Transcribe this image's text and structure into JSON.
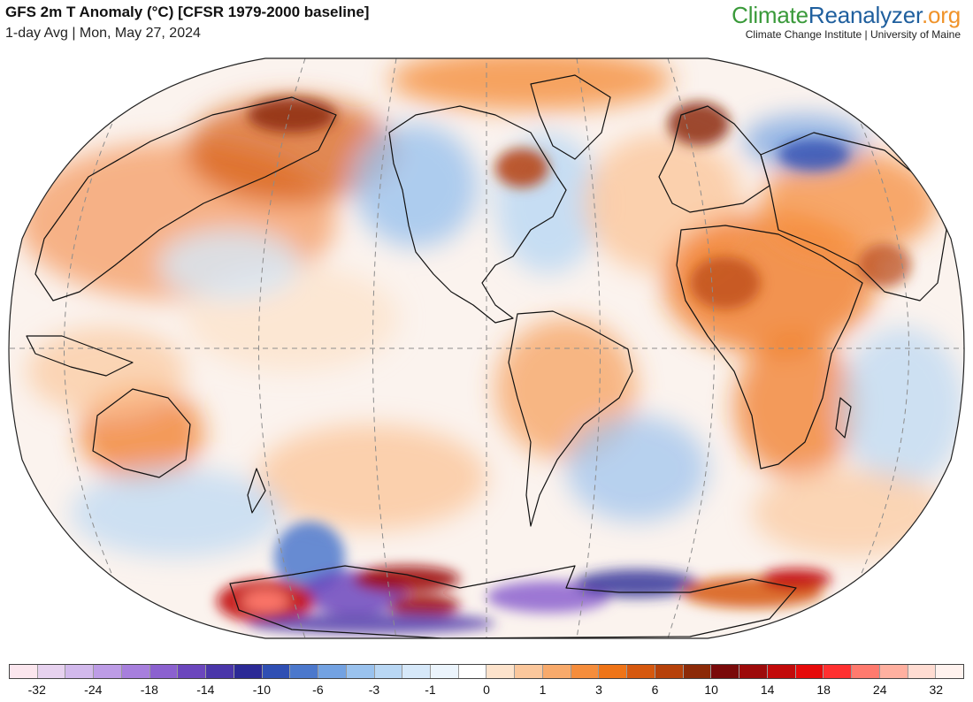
{
  "header": {
    "title": "GFS 2m T Anomaly (°C) [CFSR 1979-2000 baseline]",
    "subtitle": "1-day Avg | Mon, May 27, 2024"
  },
  "brand": {
    "part1": "Climate",
    "part2": "Reanalyzer",
    "part3": ".org",
    "subtitle": "Climate Change Institute | University of Maine"
  },
  "colors": {
    "land_outline": "#111111",
    "ocean_neutral": "#fbf3ee",
    "graticule": "#8c8c8c"
  },
  "legend": {
    "colors": [
      "#fbe6ee",
      "#e7d2ef",
      "#d2b9ec",
      "#bd9ce6",
      "#a77fdd",
      "#8b61cf",
      "#6b46bd",
      "#4a36a9",
      "#2c2a96",
      "#2f4fb3",
      "#4c78cc",
      "#73a2e2",
      "#9ac2ee",
      "#b9d7f4",
      "#d6e8f9",
      "#ebf4fc",
      "#ffffff",
      "#fde3cc",
      "#fbc79c",
      "#f8aa6b",
      "#f58d3c",
      "#ef7417",
      "#d6580e",
      "#b6410a",
      "#8c2a08",
      "#7a0a0a",
      "#9d0a0a",
      "#c20a0a",
      "#e60a0a",
      "#ff3030",
      "#ff7a6e",
      "#ffb0a0",
      "#ffdcd2",
      "#fff2ee"
    ],
    "labels": [
      {
        "text": "-32",
        "index": 1
      },
      {
        "text": "-24",
        "index": 3
      },
      {
        "text": "-18",
        "index": 5
      },
      {
        "text": "-14",
        "index": 7
      },
      {
        "text": "-10",
        "index": 9
      },
      {
        "text": "-6",
        "index": 11
      },
      {
        "text": "-3",
        "index": 13
      },
      {
        "text": "-1",
        "index": 15
      },
      {
        "text": "0",
        "index": 17
      },
      {
        "text": "1",
        "index": 19
      },
      {
        "text": "3",
        "index": 21
      },
      {
        "text": "6",
        "index": 23
      },
      {
        "text": "10",
        "index": 25
      },
      {
        "text": "14",
        "index": 27
      },
      {
        "text": "18",
        "index": 29
      },
      {
        "text": "24",
        "index": 31
      },
      {
        "text": "32",
        "index": 33
      }
    ]
  }
}
